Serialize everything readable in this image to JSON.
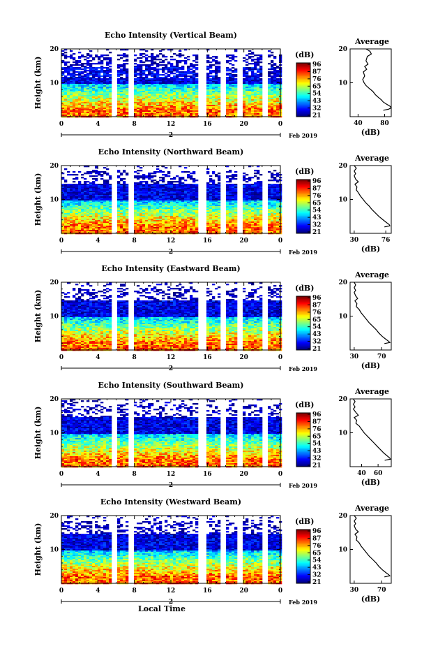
{
  "chart_data": [
    {
      "type": "heatmap",
      "title": "Echo Intensity (Vertical Beam)",
      "ylabel": "Height (km)",
      "yticks": [
        "20",
        "10"
      ],
      "xticks": [
        "0",
        "4",
        "8",
        "12",
        "16",
        "20",
        "0"
      ],
      "date_marker": "2",
      "date_label": "Feb 2019",
      "colorbar": {
        "unit": "(dB)",
        "ticks": [
          "96",
          "87",
          "76",
          "65",
          "54",
          "43",
          "32",
          "21"
        ]
      },
      "profile": {
        "title": "Average",
        "xlabel": "(dB)",
        "xticks": [
          "40",
          "80"
        ],
        "yticks": [
          "20",
          "10"
        ],
        "xlim": [
          28,
          90
        ],
        "points": [
          [
            52,
            20
          ],
          [
            58,
            19.3
          ],
          [
            60,
            18.5
          ],
          [
            54,
            17.8
          ],
          [
            52,
            16.5
          ],
          [
            55,
            15.5
          ],
          [
            50,
            14.8
          ],
          [
            53,
            14
          ],
          [
            48,
            13.2
          ],
          [
            50,
            12
          ],
          [
            47,
            11
          ],
          [
            49,
            10
          ],
          [
            52,
            9.2
          ],
          [
            57,
            8.3
          ],
          [
            62,
            7.5
          ],
          [
            66,
            6.5
          ],
          [
            70,
            5.8
          ],
          [
            75,
            5
          ],
          [
            78,
            4.3
          ],
          [
            83,
            3.7
          ],
          [
            88,
            3.1
          ],
          [
            90,
            2.6
          ],
          [
            86,
            2.2
          ],
          [
            78,
            1.9
          ]
        ]
      }
    },
    {
      "type": "heatmap",
      "title": "Echo Intensity (Northward Beam)",
      "ylabel": "Height (km)",
      "yticks": [
        "20",
        "10"
      ],
      "xticks": [
        "0",
        "4",
        "8",
        "12",
        "16",
        "20",
        "0"
      ],
      "date_marker": "2",
      "date_label": "Feb 2019",
      "colorbar": {
        "unit": "(dB)",
        "ticks": [
          "96",
          "87",
          "76",
          "65",
          "54",
          "43",
          "32",
          "21"
        ]
      },
      "profile": {
        "title": "Average",
        "xlabel": "(dB)",
        "xticks": [
          "30",
          "76"
        ],
        "yticks": [
          "20",
          "10"
        ],
        "xlim": [
          24,
          84
        ],
        "points": [
          [
            30,
            20
          ],
          [
            33,
            19.2
          ],
          [
            30,
            18.4
          ],
          [
            32,
            17.6
          ],
          [
            30,
            17
          ],
          [
            32,
            16
          ],
          [
            36,
            15.2
          ],
          [
            31,
            14.5
          ],
          [
            34,
            13.7
          ],
          [
            33,
            12.8
          ],
          [
            36,
            12
          ],
          [
            39,
            11
          ],
          [
            43,
            10
          ],
          [
            47,
            9
          ],
          [
            52,
            8
          ],
          [
            56,
            7
          ],
          [
            61,
            6
          ],
          [
            66,
            5
          ],
          [
            72,
            4
          ],
          [
            77,
            3.2
          ],
          [
            81,
            2.6
          ],
          [
            82,
            2.2
          ],
          [
            74,
            1.9
          ]
        ]
      }
    },
    {
      "type": "heatmap",
      "title": "Echo Intensity (Eastward Beam)",
      "ylabel": "Height (km)",
      "yticks": [
        "20",
        "10"
      ],
      "xticks": [
        "0",
        "4",
        "8",
        "12",
        "16",
        "20",
        "0"
      ],
      "date_marker": "2",
      "date_label": "Feb 2019",
      "colorbar": {
        "unit": "(dB)",
        "ticks": [
          "96",
          "87",
          "76",
          "65",
          "54",
          "43",
          "32",
          "21"
        ]
      },
      "profile": {
        "title": "Average",
        "xlabel": "(dB)",
        "xticks": [
          "30",
          "70"
        ],
        "yticks": [
          "20",
          "10"
        ],
        "xlim": [
          24,
          84
        ],
        "points": [
          [
            30,
            20
          ],
          [
            32,
            19.2
          ],
          [
            30,
            18.4
          ],
          [
            32,
            17.6
          ],
          [
            30,
            17
          ],
          [
            32,
            16
          ],
          [
            35,
            15.2
          ],
          [
            31,
            14.5
          ],
          [
            34,
            13.7
          ],
          [
            33,
            12.8
          ],
          [
            37,
            12
          ],
          [
            40,
            11
          ],
          [
            44,
            10
          ],
          [
            48,
            9
          ],
          [
            52,
            8
          ],
          [
            57,
            7
          ],
          [
            62,
            6
          ],
          [
            66,
            5
          ],
          [
            71,
            4
          ],
          [
            76,
            3.2
          ],
          [
            80,
            2.6
          ],
          [
            82,
            2.2
          ],
          [
            74,
            1.9
          ]
        ]
      }
    },
    {
      "type": "heatmap",
      "title": "Echo Intensity (Southward Beam)",
      "ylabel": "Height (km)",
      "yticks": [
        "20",
        "10"
      ],
      "xticks": [
        "0",
        "4",
        "8",
        "12",
        "16",
        "20",
        "0"
      ],
      "date_marker": "2",
      "date_label": "Feb 2019",
      "colorbar": {
        "unit": "(dB)",
        "ticks": [
          "96",
          "87",
          "76",
          "65",
          "54",
          "43",
          "32",
          "21"
        ]
      },
      "profile": {
        "title": "Average",
        "xlabel": "(dB)",
        "xticks": [
          "40",
          "60"
        ],
        "yticks": [
          "20",
          "10"
        ],
        "xlim": [
          26,
          76
        ],
        "points": [
          [
            30,
            20
          ],
          [
            32,
            19.2
          ],
          [
            30,
            18.4
          ],
          [
            32,
            17.6
          ],
          [
            30,
            17
          ],
          [
            33,
            16
          ],
          [
            36,
            15.2
          ],
          [
            31,
            14.5
          ],
          [
            34,
            13.7
          ],
          [
            33,
            12.8
          ],
          [
            37,
            12
          ],
          [
            40,
            11
          ],
          [
            43,
            10
          ],
          [
            47,
            9
          ],
          [
            51,
            8
          ],
          [
            55,
            7
          ],
          [
            59,
            6
          ],
          [
            63,
            5
          ],
          [
            67,
            4
          ],
          [
            71,
            3.2
          ],
          [
            74,
            2.6
          ],
          [
            75,
            2.2
          ],
          [
            68,
            1.9
          ]
        ]
      }
    },
    {
      "type": "heatmap",
      "title": "Echo Intensity (Westward Beam)",
      "ylabel": "Height (km)",
      "yticks": [
        "20",
        "10"
      ],
      "xticks": [
        "0",
        "4",
        "8",
        "12",
        "16",
        "20",
        "0"
      ],
      "date_marker": "2",
      "date_label": "Feb 2019",
      "xlabel": "Local Time",
      "colorbar": {
        "unit": "(dB)",
        "ticks": [
          "96",
          "87",
          "76",
          "65",
          "54",
          "43",
          "32",
          "21"
        ]
      },
      "profile": {
        "title": "Average",
        "xlabel": "(dB)",
        "xticks": [
          "30",
          "70"
        ],
        "yticks": [
          "20",
          "10"
        ],
        "xlim": [
          24,
          84
        ],
        "points": [
          [
            30,
            20
          ],
          [
            33,
            19.2
          ],
          [
            30,
            18.4
          ],
          [
            32,
            17.6
          ],
          [
            30,
            17
          ],
          [
            32,
            16
          ],
          [
            36,
            15.2
          ],
          [
            31,
            14.5
          ],
          [
            34,
            13.7
          ],
          [
            33,
            12.8
          ],
          [
            37,
            12
          ],
          [
            40,
            11
          ],
          [
            44,
            10
          ],
          [
            48,
            9
          ],
          [
            52,
            8
          ],
          [
            57,
            7
          ],
          [
            62,
            6
          ],
          [
            66,
            5
          ],
          [
            71,
            4
          ],
          [
            76,
            3.2
          ],
          [
            80,
            2.6
          ],
          [
            82,
            2.2
          ],
          [
            74,
            1.9
          ]
        ]
      }
    }
  ]
}
